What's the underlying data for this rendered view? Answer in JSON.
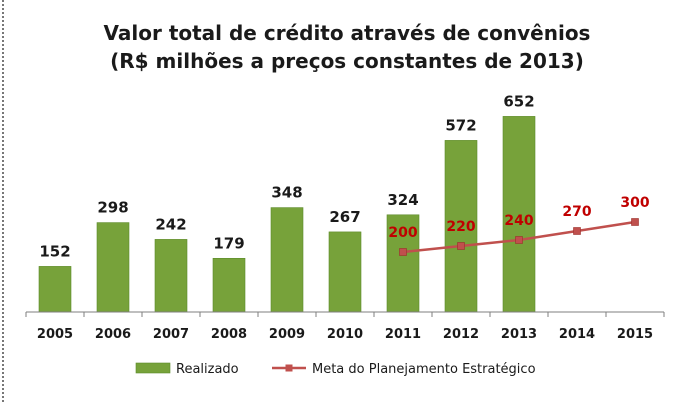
{
  "chart_data": {
    "type": "bar",
    "title": "Valor total de crédito através de convênios",
    "subtitle": "(R$ milhões a preços constantes de 2013)",
    "categories": [
      "2005",
      "2006",
      "2007",
      "2008",
      "2009",
      "2010",
      "2011",
      "2012",
      "2013",
      "2014",
      "2015"
    ],
    "series": [
      {
        "name": "Realizado",
        "kind": "bar",
        "values": [
          152,
          298,
          242,
          179,
          348,
          267,
          324,
          572,
          652,
          null,
          null
        ]
      },
      {
        "name": "Meta do Planejamento Estratégico",
        "kind": "line",
        "values": [
          null,
          null,
          null,
          null,
          null,
          null,
          200,
          220,
          240,
          270,
          300
        ]
      }
    ],
    "ylim": [
      0,
      700
    ],
    "grid": false,
    "legend_position": "bottom",
    "colors": {
      "bar": "#77a23a",
      "bar_stroke": "#5c8a2a",
      "line": "#c0504d",
      "line_label": "#c00000",
      "bar_label": "#1a1a1a",
      "axis": "#7f7f7f"
    }
  }
}
